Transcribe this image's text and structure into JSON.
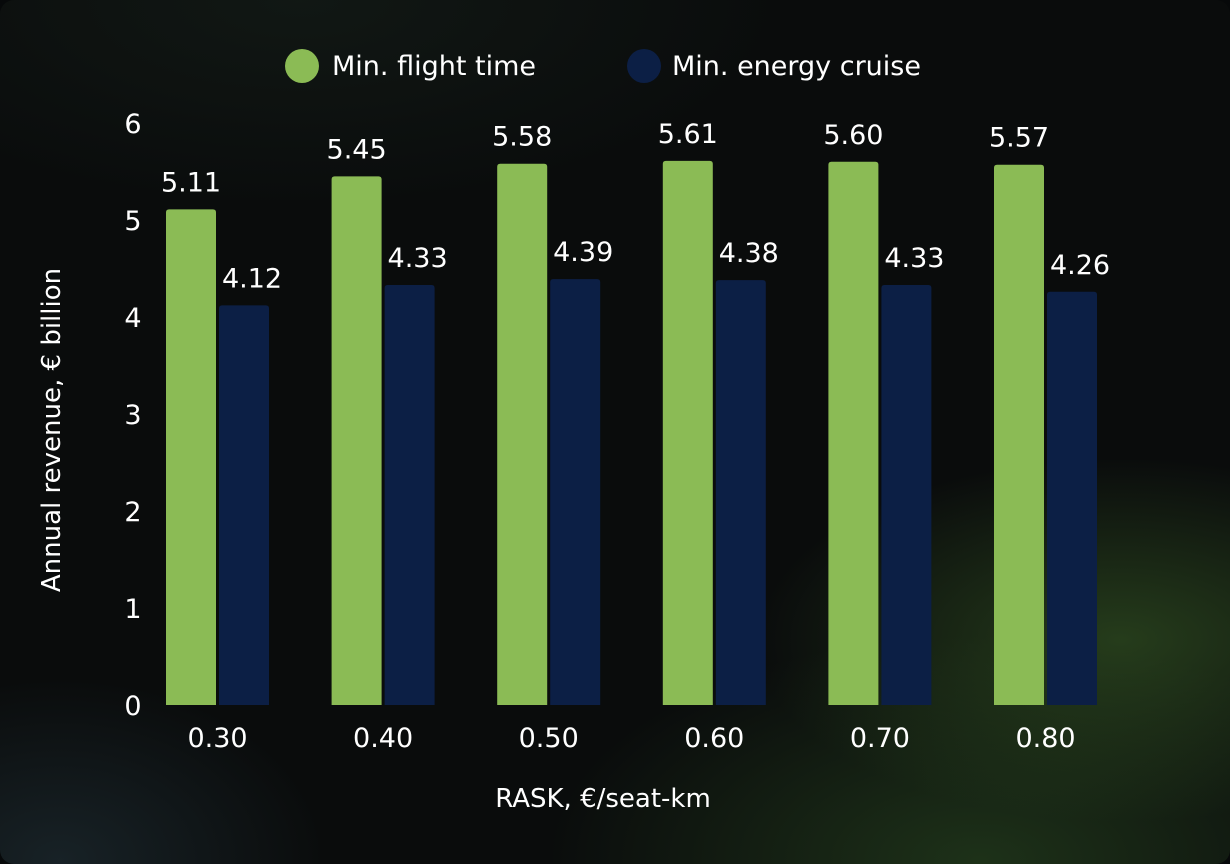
{
  "chart_data": {
    "type": "bar",
    "xlabel": "RASK, €/seat-km",
    "ylabel": "Annual revenue, € billion",
    "categories": [
      "0.30",
      "0.40",
      "0.50",
      "0.60",
      "0.70",
      "0.80"
    ],
    "y_ticks": [
      "0",
      "1",
      "2",
      "3",
      "4",
      "5",
      "6"
    ],
    "ylim": [
      0,
      6
    ],
    "grid": false,
    "legend_position": "top",
    "series": [
      {
        "name": "Min. flight time",
        "color": "#8bbb55",
        "values": [
          5.11,
          5.45,
          5.58,
          5.61,
          5.6,
          5.57
        ],
        "labels": [
          "5.11",
          "5.45",
          "5.58",
          "5.61",
          "5.60",
          "5.57"
        ]
      },
      {
        "name": "Min. energy cruise",
        "color": "#0c1f45",
        "values": [
          4.12,
          4.33,
          4.39,
          4.38,
          4.33,
          4.26
        ],
        "labels": [
          "4.12",
          "4.33",
          "4.39",
          "4.38",
          "4.33",
          "4.26"
        ]
      }
    ]
  }
}
